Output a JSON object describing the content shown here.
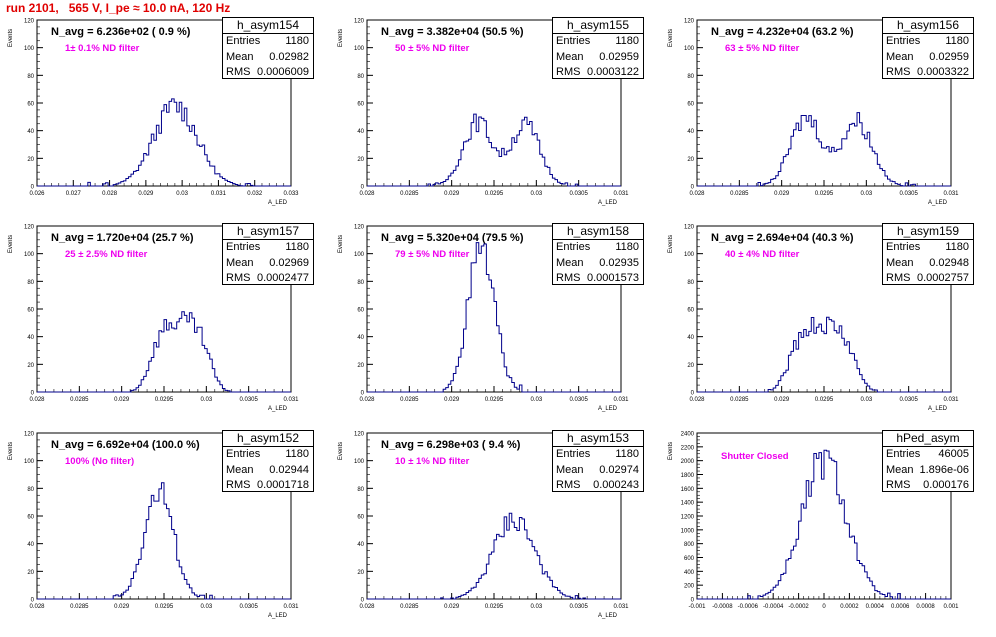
{
  "page_title": "run 2101,   565 V, I_pe ≈ 10.0 nA, 120 Hz",
  "colors": {
    "title": "#e00000",
    "note": "#ee00ee",
    "hist": "#00008b"
  },
  "stats_labels": {
    "entries": "Entries",
    "mean": "Mean",
    "rms": "RMS"
  },
  "chart_data": [
    {
      "type": "bar",
      "title": "h_asym154",
      "n_avg": "N_avg = 6.236e+02 ( 0.9 %)",
      "note": "1± 0.1% ND filter",
      "entries": "1180",
      "mean": "0.02982",
      "rms": "0.0006009",
      "ylabel": "Events",
      "xlabel": "A_LED",
      "xlim": [
        0.026,
        0.033
      ],
      "ylim": [
        0,
        120
      ],
      "yticks": [
        0,
        20,
        40,
        60,
        80,
        100,
        120
      ],
      "xticks": [
        "0.026",
        "0.027",
        "0.028",
        "0.029",
        "0.03",
        "0.031",
        "0.032",
        "0.033"
      ],
      "shape": {
        "mean": 0.02982,
        "rms": 0.0006009,
        "peak": 63,
        "bins": 100
      }
    },
    {
      "type": "bar",
      "title": "h_asym155",
      "n_avg": "N_avg = 3.382e+04 (50.5 %)",
      "note": "50 ± 5% ND filter",
      "entries": "1180",
      "mean": "0.02959",
      "rms": "0.0003122",
      "ylabel": "Events",
      "xlabel": "A_LED",
      "xlim": [
        0.028,
        0.031
      ],
      "ylim": [
        0,
        120
      ],
      "yticks": [
        0,
        20,
        40,
        60,
        80,
        100,
        120
      ],
      "xticks": [
        "0.028",
        "0.0285",
        "0.029",
        "0.0295",
        "0.03",
        "0.0305",
        "0.031"
      ],
      "shape": {
        "mean": 0.02959,
        "rms": 0.0003122,
        "peak": 52,
        "bins": 100,
        "double": true
      }
    },
    {
      "type": "bar",
      "title": "h_asym156",
      "n_avg": "N_avg = 4.232e+04 (63.2 %)",
      "note": "63 ± 5% ND filter",
      "entries": "1180",
      "mean": "0.02959",
      "rms": "0.0003322",
      "ylabel": "Events",
      "xlabel": "A_LED",
      "xlim": [
        0.028,
        0.031
      ],
      "ylim": [
        0,
        120
      ],
      "yticks": [
        0,
        20,
        40,
        60,
        80,
        100,
        120
      ],
      "xticks": [
        "0.028",
        "0.0285",
        "0.029",
        "0.0295",
        "0.03",
        "0.0305",
        "0.031"
      ],
      "shape": {
        "mean": 0.02959,
        "rms": 0.0003322,
        "peak": 53,
        "bins": 100,
        "double": true
      }
    },
    {
      "type": "bar",
      "title": "h_asym157",
      "n_avg": "N_avg = 1.720e+04 (25.7 %)",
      "note": "25 ± 2.5% ND filter",
      "entries": "1180",
      "mean": "0.02969",
      "rms": "0.0002477",
      "ylabel": "Events",
      "xlabel": "A_LED",
      "xlim": [
        0.028,
        0.031
      ],
      "ylim": [
        0,
        120
      ],
      "yticks": [
        0,
        20,
        40,
        60,
        80,
        100,
        120
      ],
      "xticks": [
        "0.028",
        "0.0285",
        "0.029",
        "0.0295",
        "0.03",
        "0.0305",
        "0.031"
      ],
      "shape": {
        "mean": 0.02969,
        "rms": 0.0002477,
        "peak": 58,
        "bins": 100,
        "flat": true
      }
    },
    {
      "type": "bar",
      "title": "h_asym158",
      "n_avg": "N_avg = 5.320e+04 (79.5 %)",
      "note": "79 ± 5% ND filter",
      "entries": "1180",
      "mean": "0.02935",
      "rms": "0.0001573",
      "ylabel": "Events",
      "xlabel": "A_LED",
      "xlim": [
        0.028,
        0.031
      ],
      "ylim": [
        0,
        120
      ],
      "yticks": [
        0,
        20,
        40,
        60,
        80,
        100,
        120
      ],
      "xticks": [
        "0.028",
        "0.0285",
        "0.029",
        "0.0295",
        "0.03",
        "0.0305",
        "0.031"
      ],
      "shape": {
        "mean": 0.02935,
        "rms": 0.0001573,
        "peak": 108,
        "bins": 100
      }
    },
    {
      "type": "bar",
      "title": "h_asym159",
      "n_avg": "N_avg = 2.694e+04 (40.3 %)",
      "note": "40 ± 4% ND filter",
      "entries": "1180",
      "mean": "0.02948",
      "rms": "0.0002757",
      "ylabel": "Events",
      "xlabel": "A_LED",
      "xlim": [
        0.028,
        0.031
      ],
      "ylim": [
        0,
        120
      ],
      "yticks": [
        0,
        20,
        40,
        60,
        80,
        100,
        120
      ],
      "xticks": [
        "0.028",
        "0.0285",
        "0.029",
        "0.0295",
        "0.03",
        "0.0305",
        "0.031"
      ],
      "shape": {
        "mean": 0.02948,
        "rms": 0.0002757,
        "peak": 54,
        "bins": 100,
        "flat": true
      }
    },
    {
      "type": "bar",
      "title": "h_asym152",
      "n_avg": "N_avg = 6.692e+04 (100.0 %)",
      "note": "100% (No filter)",
      "entries": "1180",
      "mean": "0.02944",
      "rms": "0.0001718",
      "ylabel": "Events",
      "xlabel": "A_LED",
      "xlim": [
        0.028,
        0.031
      ],
      "ylim": [
        0,
        120
      ],
      "yticks": [
        0,
        20,
        40,
        60,
        80,
        100,
        120
      ],
      "xticks": [
        "0.028",
        "0.0285",
        "0.029",
        "0.0295",
        "0.03",
        "0.0305",
        "0.031"
      ],
      "shape": {
        "mean": 0.02944,
        "rms": 0.0001718,
        "peak": 84,
        "bins": 100
      }
    },
    {
      "type": "bar",
      "title": "h_asym153",
      "n_avg": "N_avg = 6.298e+03 ( 9.4 %)",
      "note": "10 ± 1% ND filter",
      "entries": "1180",
      "mean": "0.02974",
      "rms": "0.000243",
      "ylabel": "Events",
      "xlabel": "A_LED",
      "xlim": [
        0.028,
        0.031
      ],
      "ylim": [
        0,
        120
      ],
      "yticks": [
        0,
        20,
        40,
        60,
        80,
        100,
        120
      ],
      "xticks": [
        "0.028",
        "0.0285",
        "0.029",
        "0.0295",
        "0.03",
        "0.0305",
        "0.031"
      ],
      "shape": {
        "mean": 0.02974,
        "rms": 0.000243,
        "peak": 62,
        "bins": 100
      }
    },
    {
      "type": "bar",
      "title": "hPed_asym",
      "n_avg": "",
      "note": "Shutter Closed",
      "entries": "46005",
      "mean": "1.896e-06",
      "rms": "0.000176",
      "ylabel": "Events",
      "xlabel": "",
      "xlim": [
        -0.001,
        0.001
      ],
      "ylim": [
        0,
        2400
      ],
      "yticks": [
        0,
        200,
        400,
        600,
        800,
        1000,
        1200,
        1400,
        1600,
        1800,
        2000,
        2200,
        2400
      ],
      "xticks": [
        "-0.001",
        "-0.0008",
        "-0.0006",
        "-0.0004",
        "-0.0002",
        "0",
        "0.0002",
        "0.0004",
        "0.0006",
        "0.0008",
        "0.001"
      ],
      "shape": {
        "mean": 1.9e-06,
        "rms": 0.000176,
        "peak": 2150,
        "bins": 100
      }
    }
  ]
}
